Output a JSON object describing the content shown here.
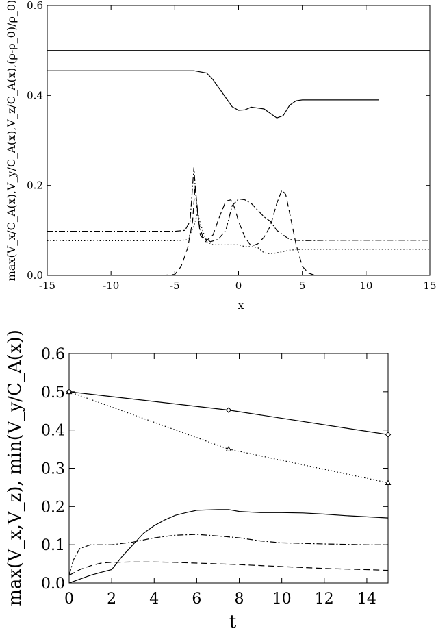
{
  "chart_data": [
    {
      "type": "line",
      "xlabel": "x",
      "ylabel": "max(V_x/C_A(x),V_y/C_A(x),V_z/C_A(x),(ρ-ρ_0)/ρ_0)",
      "xlim": [
        -15,
        15
      ],
      "ylim": [
        0,
        0.6
      ],
      "xticks": [
        "-15",
        "-10",
        "-5",
        "0",
        "5",
        "10",
        "15"
      ],
      "yticks": [
        "0.0",
        "0.2",
        "0.4",
        "0.6"
      ],
      "series": [
        {
          "style": "solid-flat",
          "x": [
            -15,
            15
          ],
          "y": [
            0.5,
            0.5
          ]
        },
        {
          "style": "solid",
          "x": [
            -15,
            -5,
            -3.5,
            -2.5,
            -2,
            -1.5,
            -1,
            -0.5,
            0,
            0.5,
            1,
            1.5,
            2,
            2.5,
            3,
            3.5,
            4,
            4.5,
            5,
            6,
            7.5,
            9.8,
            11
          ],
          "y": [
            0.455,
            0.455,
            0.455,
            0.45,
            0.435,
            0.415,
            0.395,
            0.375,
            0.367,
            0.368,
            0.374,
            0.372,
            0.37,
            0.36,
            0.35,
            0.355,
            0.378,
            0.388,
            0.39,
            0.39,
            0.39,
            0.39,
            0.39
          ]
        },
        {
          "style": "dashed",
          "x": [
            -15,
            -6,
            -5,
            -4.5,
            -4,
            -3.6,
            -3.4,
            -3.2,
            -3,
            -2.6,
            -2,
            -1.5,
            -1,
            -0.6,
            -0.3,
            0,
            0.5,
            1,
            1.5,
            2,
            2.5,
            3,
            3.4,
            3.7,
            4,
            4.5,
            5,
            5.5,
            6,
            8,
            15
          ],
          "y": [
            0,
            0,
            0.002,
            0.02,
            0.06,
            0.12,
            0.2,
            0.14,
            0.09,
            0.075,
            0.09,
            0.13,
            0.165,
            0.168,
            0.15,
            0.12,
            0.085,
            0.065,
            0.07,
            0.085,
            0.11,
            0.16,
            0.19,
            0.18,
            0.14,
            0.07,
            0.02,
            0.005,
            0,
            0,
            0
          ]
        },
        {
          "style": "dash-dot",
          "x": [
            -15,
            -5,
            -4.2,
            -3.8,
            -3.5,
            -3.3,
            -3.1,
            -2.8,
            -2.2,
            -1.6,
            -1,
            -0.5,
            0,
            0.5,
            1,
            1.5,
            2,
            2.5,
            3,
            3.5,
            4,
            4.5,
            5,
            7,
            15
          ],
          "y": [
            0.098,
            0.098,
            0.1,
            0.12,
            0.24,
            0.16,
            0.115,
            0.085,
            0.075,
            0.08,
            0.1,
            0.155,
            0.17,
            0.168,
            0.16,
            0.145,
            0.13,
            0.12,
            0.1,
            0.09,
            0.08,
            0.078,
            0.077,
            0.078,
            0.078
          ]
        },
        {
          "style": "dotted",
          "x": [
            -15,
            -5,
            -4,
            -3.5,
            -3.2,
            -3,
            -2.5,
            -2,
            -1,
            0,
            0.5,
            1,
            1.5,
            2,
            2.5,
            3,
            4,
            5,
            15
          ],
          "y": [
            0.077,
            0.077,
            0.079,
            0.11,
            0.14,
            0.115,
            0.075,
            0.068,
            0.068,
            0.068,
            0.064,
            0.064,
            0.062,
            0.05,
            0.048,
            0.05,
            0.056,
            0.058,
            0.058
          ]
        }
      ]
    },
    {
      "type": "line",
      "xlabel": "t",
      "ylabel": "max(V_x,V_z), min(V_y/C_A(x))",
      "xlim": [
        0,
        15
      ],
      "ylim": [
        0,
        0.6
      ],
      "xticks": [
        "0",
        "2",
        "4",
        "6",
        "8",
        "10",
        "12",
        "14"
      ],
      "yticks": [
        "0.0",
        "0.1",
        "0.2",
        "0.3",
        "0.4",
        "0.5",
        "0.6"
      ],
      "series": [
        {
          "style": "solid",
          "marker": "diamond",
          "x": [
            0,
            7.5,
            15
          ],
          "y": [
            0.5,
            0.452,
            0.388
          ]
        },
        {
          "style": "dotted",
          "marker": "triangle",
          "x": [
            0,
            7.5,
            15
          ],
          "y": [
            0.5,
            0.35,
            0.262
          ]
        },
        {
          "style": "solid",
          "x": [
            0,
            0.5,
            1,
            1.5,
            2,
            2.5,
            3,
            3.5,
            4,
            4.5,
            5,
            5.5,
            6,
            7,
            7.5,
            8,
            9,
            10,
            11,
            12,
            13,
            14,
            15
          ],
          "y": [
            0,
            0.01,
            0.02,
            0.028,
            0.035,
            0.07,
            0.1,
            0.13,
            0.15,
            0.165,
            0.177,
            0.184,
            0.19,
            0.192,
            0.192,
            0.187,
            0.184,
            0.184,
            0.183,
            0.18,
            0.176,
            0.173,
            0.17
          ]
        },
        {
          "style": "dash-dot",
          "x": [
            0,
            0.2,
            0.5,
            1,
            1.5,
            2,
            3,
            4,
            5,
            6,
            7,
            8,
            9,
            10,
            12,
            14,
            15
          ],
          "y": [
            0.02,
            0.06,
            0.09,
            0.1,
            0.1,
            0.1,
            0.107,
            0.118,
            0.125,
            0.127,
            0.123,
            0.118,
            0.11,
            0.105,
            0.102,
            0.1,
            0.1
          ]
        },
        {
          "style": "dashed",
          "x": [
            0,
            0.5,
            1,
            1.5,
            2,
            3,
            4,
            5,
            6,
            7,
            8,
            10,
            12,
            14,
            15
          ],
          "y": [
            0.02,
            0.035,
            0.045,
            0.052,
            0.054,
            0.055,
            0.055,
            0.054,
            0.052,
            0.05,
            0.048,
            0.043,
            0.038,
            0.035,
            0.033
          ]
        }
      ]
    }
  ]
}
